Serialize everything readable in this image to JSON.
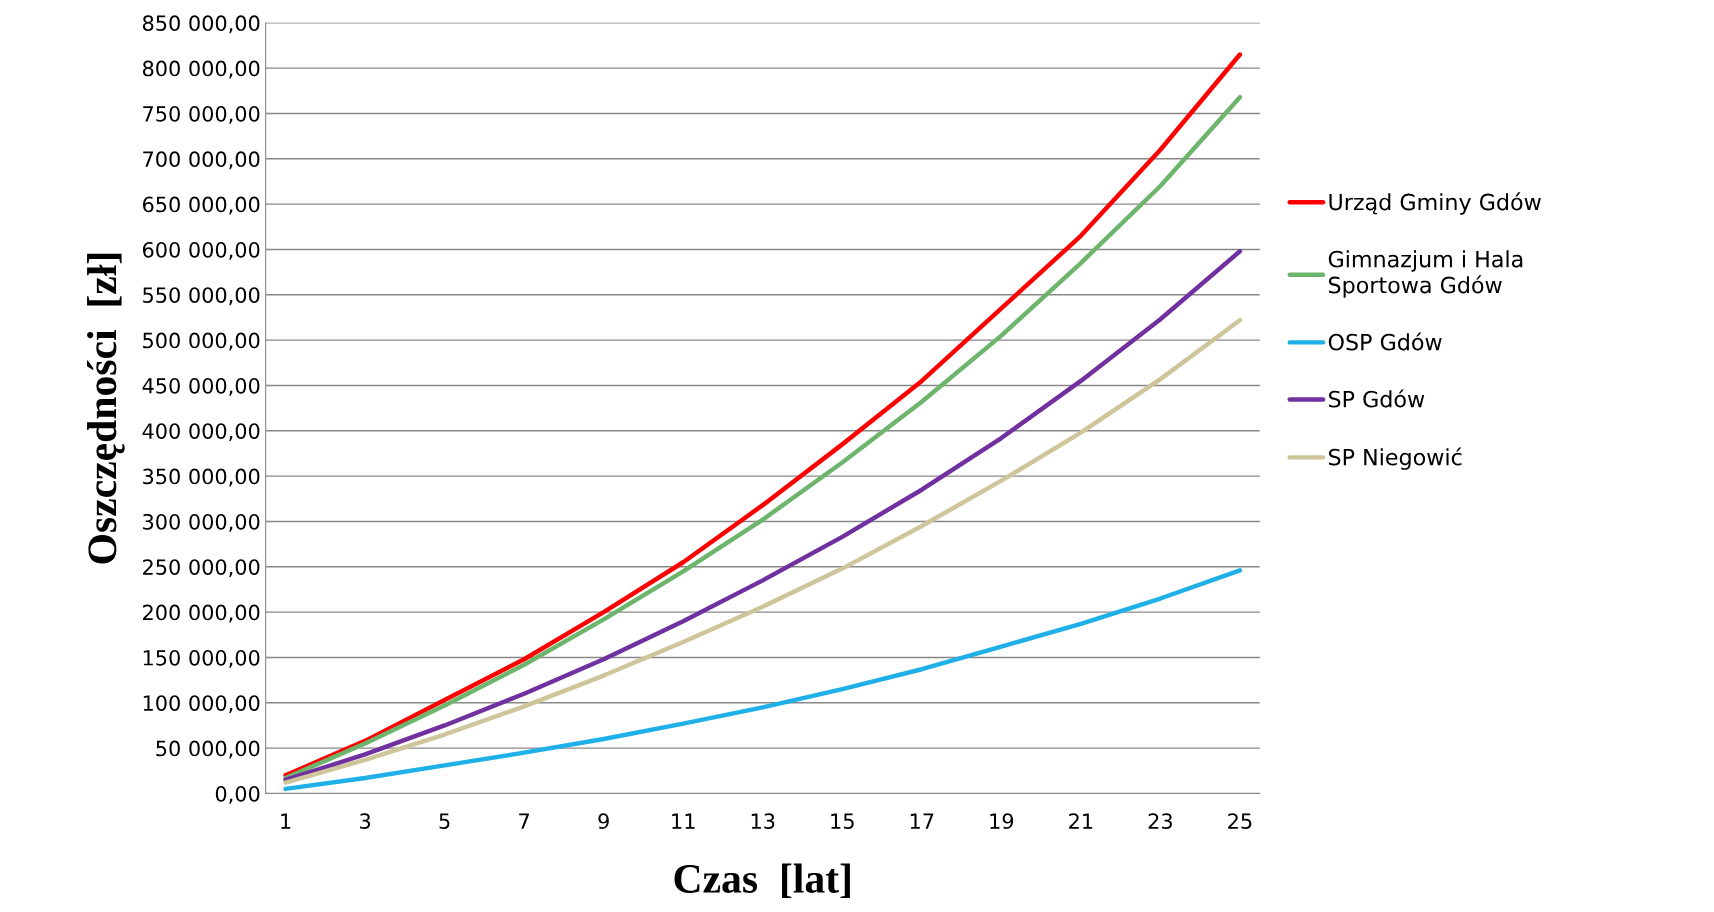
{
  "chart_data": {
    "type": "line",
    "xlabel": "Czas  [lat]",
    "ylabel": "Oszczędności  [zł]",
    "x": [
      1,
      3,
      5,
      7,
      9,
      11,
      13,
      15,
      17,
      19,
      21,
      23,
      25
    ],
    "xlim": [
      0.5,
      25.5
    ],
    "xticks": [
      1,
      3,
      5,
      7,
      9,
      11,
      13,
      15,
      17,
      19,
      21,
      23,
      25
    ],
    "ylim": [
      0,
      850000
    ],
    "yticks": [
      {
        "value": 0,
        "label": "0,00"
      },
      {
        "value": 50000,
        "label": "50 000,00"
      },
      {
        "value": 100000,
        "label": "100 000,00"
      },
      {
        "value": 150000,
        "label": "150 000,00"
      },
      {
        "value": 200000,
        "label": "200 000,00"
      },
      {
        "value": 250000,
        "label": "250 000,00"
      },
      {
        "value": 300000,
        "label": "300 000,00"
      },
      {
        "value": 350000,
        "label": "350 000,00"
      },
      {
        "value": 400000,
        "label": "400 000,00"
      },
      {
        "value": 450000,
        "label": "450 000,00"
      },
      {
        "value": 500000,
        "label": "500 000,00"
      },
      {
        "value": 550000,
        "label": "550 000,00"
      },
      {
        "value": 600000,
        "label": "600 000,00"
      },
      {
        "value": 650000,
        "label": "650 000,00"
      },
      {
        "value": 700000,
        "label": "700 000,00"
      },
      {
        "value": 750000,
        "label": "750 000,00"
      },
      {
        "value": 800000,
        "label": "800 000,00"
      },
      {
        "value": 850000,
        "label": "850 000,00"
      }
    ],
    "grid": "y",
    "legend": "right",
    "marker": "none",
    "line_style": "solid",
    "series": [
      {
        "name": "Urząd Gminy Gdów",
        "color": "#ff0000",
        "values": [
          20000,
          58000,
          103000,
          148000,
          200000,
          255000,
          318000,
          385000,
          455000,
          535000,
          615000,
          710000,
          815000
        ]
      },
      {
        "name": "Gimnazjum i Hala\nSportowa Gdów",
        "color": "#6db56d",
        "values": [
          17000,
          55000,
          97000,
          142000,
          192000,
          245000,
          302000,
          365000,
          432000,
          505000,
          585000,
          670000,
          768000
        ]
      },
      {
        "name": "OSP Gdów",
        "color": "#1fb0e8",
        "values": [
          5000,
          17000,
          31000,
          45000,
          60000,
          77000,
          95000,
          115000,
          137000,
          162000,
          187000,
          215000,
          246000
        ]
      },
      {
        "name": "SP Gdów",
        "color": "#7030a0",
        "values": [
          15000,
          43000,
          75000,
          110000,
          148000,
          190000,
          235000,
          283000,
          335000,
          392000,
          455000,
          523000,
          598000
        ]
      },
      {
        "name": "SP Niegowić",
        "color": "#cfc59a",
        "values": [
          12000,
          37000,
          65000,
          96000,
          130000,
          167000,
          206000,
          248000,
          295000,
          345000,
          398000,
          457000,
          522000
        ]
      }
    ]
  }
}
